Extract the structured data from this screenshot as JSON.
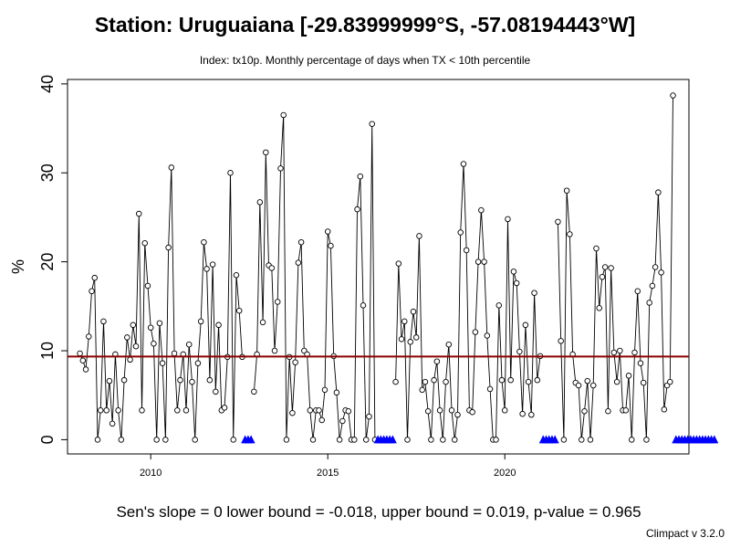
{
  "title": "Station: Uruguaiana [-29.83999999°S, -57.08194443°W]",
  "subtitle": "Index: tx10p. Monthly percentage of days when TX < 10th percentile",
  "stats_line": "Sen's slope = 0   lower bound = -0.018,   upper bound = 0.019,   p-value = 0.965",
  "version": "Climpact v 3.2.0",
  "colors": {
    "line": "#000000",
    "points": "#000000",
    "reference_line": "#8b0000",
    "missing_markers": "#0000ff"
  },
  "chart_data": {
    "type": "line",
    "xlabel": "",
    "ylabel": "%",
    "xlim": [
      2007.65,
      2025.2
    ],
    "ylim": [
      -1.6,
      40.5
    ],
    "x_ticks": [
      2010,
      2015,
      2020
    ],
    "y_ticks": [
      0,
      10,
      20,
      30,
      40
    ],
    "start_year": 2008,
    "start_month": 1,
    "values": [
      9.7,
      8.9,
      7.9,
      11.6,
      16.7,
      18.2,
      0,
      3.3,
      13.3,
      3.3,
      6.6,
      1.8,
      9.6,
      3.3,
      0,
      6.7,
      11.5,
      9.0,
      12.9,
      10.5,
      25.4,
      3.3,
      22.1,
      17.3,
      12.6,
      10.8,
      0,
      13.1,
      8.6,
      0,
      21.6,
      30.6,
      9.7,
      3.3,
      6.7,
      9.6,
      3.3,
      10.7,
      6.5,
      0,
      8.6,
      13.3,
      22.2,
      19.2,
      6.7,
      19.7,
      5.4,
      12.9,
      3.3,
      3.6,
      9.3,
      30.0,
      0,
      18.5,
      14.5,
      9.3,
      null,
      null,
      null,
      5.4,
      9.6,
      26.7,
      13.2,
      32.3,
      19.6,
      19.3,
      10.0,
      15.5,
      30.5,
      36.5,
      0,
      9.3,
      3.0,
      8.7,
      19.9,
      22.2,
      10.0,
      9.6,
      3.3,
      0,
      3.3,
      3.3,
      2.2,
      5.6,
      23.4,
      21.8,
      9.4,
      5.3,
      0,
      2.1,
      3.3,
      3.2,
      0,
      0,
      25.9,
      29.6,
      15.1,
      0,
      2.6,
      35.5,
      0,
      null,
      null,
      null,
      null,
      null,
      null,
      6.5,
      19.8,
      11.3,
      13.3,
      0,
      11.0,
      14.4,
      11.5,
      22.9,
      5.6,
      6.5,
      3.2,
      0,
      6.7,
      8.8,
      3.3,
      0,
      6.5,
      10.7,
      3.3,
      0,
      2.8,
      23.3,
      31.0,
      21.3,
      3.3,
      3.1,
      12.1,
      20.0,
      25.8,
      20.0,
      11.7,
      5.7,
      0,
      0,
      15.1,
      6.7,
      3.3,
      24.8,
      6.7,
      18.9,
      17.6,
      9.9,
      2.9,
      12.9,
      6.5,
      2.8,
      16.5,
      6.7,
      9.4,
      null,
      null,
      null,
      null,
      null,
      24.5,
      11.1,
      0,
      28.0,
      23.1,
      9.6,
      6.4,
      6.1,
      0,
      3.2,
      6.6,
      0,
      6.1,
      21.5,
      14.8,
      18.3,
      19.4,
      3.2,
      19.3,
      9.8,
      6.5,
      10.0,
      3.3,
      3.3,
      7.2,
      0,
      9.8,
      16.7,
      8.6,
      6.4,
      0,
      15.4,
      17.3,
      19.4,
      27.8,
      18.8,
      3.4,
      6.1,
      6.5,
      38.7,
      null,
      null,
      null,
      null,
      null,
      null,
      null,
      null,
      null,
      null,
      null,
      null,
      null,
      null
    ],
    "missing_marker_value": 0,
    "reference_line": 9.35
  }
}
